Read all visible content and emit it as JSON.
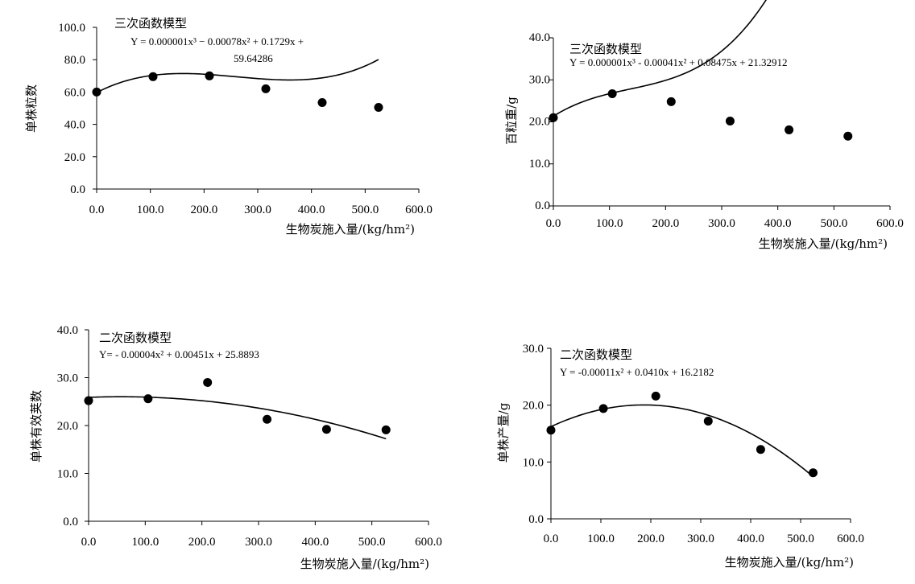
{
  "chart_data": [
    {
      "type": "scatter",
      "title": "三次函数模型",
      "equation": "Y = 0.000001x³ − 0.00078x² + 0.1729x + 59.64286",
      "equation_line1": "Y = 0.000001x³ − 0.00078x² + 0.1729x +",
      "equation_line2": "59.64286",
      "xlabel": "生物炭施入量/(kg/hm²)",
      "ylabel": "单株粒数",
      "xlim": [
        0,
        600
      ],
      "ylim": [
        0,
        100
      ],
      "x_ticks": [
        "0.0",
        "100.0",
        "200.0",
        "300.0",
        "400.0",
        "500.0",
        "600.0"
      ],
      "y_ticks": [
        "0.0",
        "20.0",
        "40.0",
        "60.0",
        "80.0",
        "100.0"
      ],
      "fit": {
        "degree": 3,
        "coefficients": [
          59.64286,
          0.1729,
          -0.00078,
          1e-06
        ],
        "x_range": [
          0,
          525
        ]
      },
      "series": [
        {
          "x": [
            0,
            105,
            210,
            315,
            420,
            525
          ],
          "y": [
            60.0,
            69.5,
            70.0,
            62.0,
            53.5,
            50.5
          ]
        }
      ]
    },
    {
      "type": "scatter",
      "title": "三次函数模型",
      "equation": "Y = 0.000001x³ - 0.00041x² + 0.08475x + 21.32912",
      "xlabel": "生物炭施入量/(kg/hm²)",
      "ylabel": "百粒重/g",
      "xlim": [
        0,
        600
      ],
      "ylim": [
        0,
        40
      ],
      "x_ticks": [
        "0.0",
        "100.0",
        "200.0",
        "300.0",
        "400.0",
        "500.0",
        "600.0"
      ],
      "y_ticks": [
        "0.0",
        "10.0",
        "20.0",
        "30.0",
        "40.0"
      ],
      "fit": {
        "degree": 3,
        "coefficients": [
          21.32912,
          0.08475,
          -0.00041,
          1e-06
        ],
        "x_range": [
          0,
          525
        ]
      },
      "series": [
        {
          "x": [
            0,
            105,
            210,
            315,
            420,
            525
          ],
          "y": [
            21.0,
            26.7,
            24.8,
            20.2,
            18.1,
            16.6
          ]
        }
      ]
    },
    {
      "type": "scatter",
      "title": "二次函数模型",
      "equation": "Y= - 0.00004x² + 0.00451x + 25.8893",
      "xlabel": "生物炭施入量/(kg/hm²)",
      "ylabel": "单株有效荚数",
      "xlim": [
        0,
        600
      ],
      "ylim": [
        0,
        40
      ],
      "x_ticks": [
        "0.0",
        "100.0",
        "200.0",
        "300.0",
        "400.0",
        "500.0",
        "600.0"
      ],
      "y_ticks": [
        "0.0",
        "10.0",
        "20.0",
        "30.0",
        "40.0"
      ],
      "fit": {
        "degree": 2,
        "coefficients": [
          25.8893,
          0.00451,
          -4e-05
        ],
        "x_range": [
          0,
          525
        ]
      },
      "series": [
        {
          "x": [
            0,
            105,
            210,
            315,
            420,
            525
          ],
          "y": [
            25.2,
            25.6,
            29.0,
            21.3,
            19.2,
            19.1
          ]
        }
      ]
    },
    {
      "type": "scatter",
      "title": "二次函数模型",
      "equation": "Y = -0.00011x² + 0.0410x + 16.2182",
      "xlabel": "生物炭施入量/(kg/hm²)",
      "ylabel": "单株产量/g",
      "xlim": [
        0,
        600
      ],
      "ylim": [
        0,
        30
      ],
      "x_ticks": [
        "0.0",
        "100.0",
        "200.0",
        "300.0",
        "400.0",
        "500.0",
        "600.0"
      ],
      "y_ticks": [
        "0.0",
        "10.0",
        "20.0",
        "30.0"
      ],
      "fit": {
        "degree": 2,
        "coefficients": [
          16.2182,
          0.041,
          -0.00011
        ],
        "x_range": [
          0,
          525
        ]
      },
      "series": [
        {
          "x": [
            0,
            105,
            210,
            315,
            420,
            525
          ],
          "y": [
            15.6,
            19.4,
            21.6,
            17.2,
            12.2,
            8.1
          ]
        }
      ]
    }
  ]
}
